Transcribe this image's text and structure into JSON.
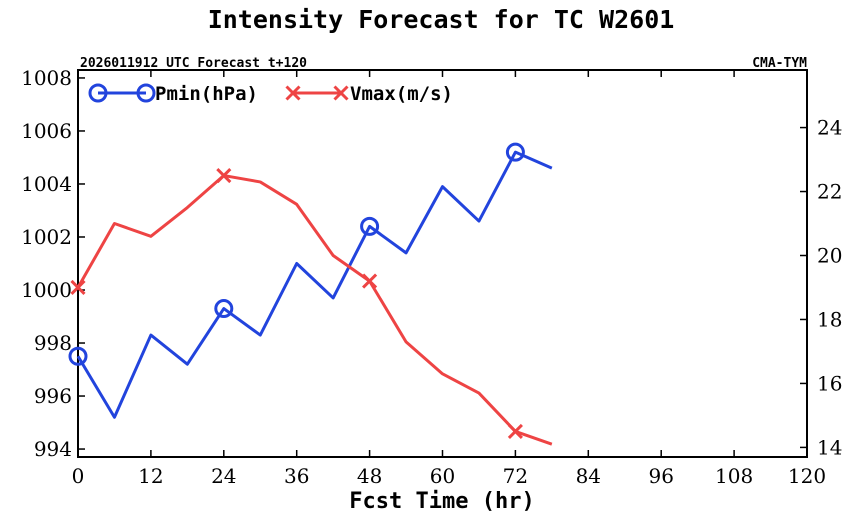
{
  "chart_data": {
    "type": "line",
    "title": "Intensity Forecast for TC W2601",
    "subtitle_left": "2026011912 UTC Forecast t+120",
    "subtitle_right": "CMA-TYM",
    "xlabel": "Fcst Time (hr)",
    "xlim": [
      0,
      120
    ],
    "xticks": [
      0,
      12,
      24,
      36,
      48,
      60,
      72,
      84,
      96,
      108,
      120
    ],
    "y_left_lim": [
      993.7,
      1008.3
    ],
    "y_left_ticks": [
      994,
      996,
      998,
      1000,
      1002,
      1004,
      1006,
      1008
    ],
    "y_right_lim": [
      13.7,
      25.8
    ],
    "y_right_ticks": [
      14,
      16,
      18,
      20,
      22,
      24
    ],
    "legend_position": "top-left",
    "series": [
      {
        "name": "Pmin(hPa)",
        "axis": "left",
        "color": "#2244dd",
        "marker": "circle",
        "marker_every_hours": 24,
        "x": [
          0,
          6,
          12,
          18,
          24,
          30,
          36,
          42,
          48,
          54,
          60,
          66,
          72,
          78
        ],
        "values": [
          997.5,
          995.2,
          998.3,
          997.2,
          999.3,
          998.3,
          1001.0,
          999.7,
          1002.4,
          1001.4,
          1003.9,
          1002.6,
          1005.2,
          1004.6
        ]
      },
      {
        "name": "Vmax(m/s)",
        "axis": "right",
        "color": "#ee4444",
        "marker": "x",
        "marker_every_hours": 24,
        "x": [
          0,
          6,
          12,
          18,
          24,
          30,
          36,
          42,
          48,
          54,
          60,
          66,
          72,
          78
        ],
        "values": [
          19.0,
          21.0,
          20.6,
          21.5,
          22.5,
          22.3,
          21.6,
          20.0,
          19.2,
          17.3,
          16.3,
          15.7,
          14.5,
          14.1
        ]
      }
    ]
  }
}
